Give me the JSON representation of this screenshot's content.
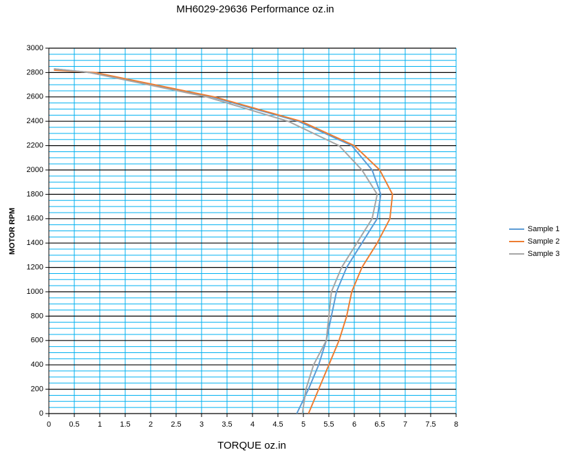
{
  "chart_data": {
    "type": "line",
    "title": "MH6029-29636  Performance oz.in",
    "x_label": "TORQUE  oz.in",
    "y_label": "MOTOR RPM",
    "xlim": [
      0,
      8
    ],
    "xticks": [
      0,
      0.5,
      1,
      1.5,
      2,
      2.5,
      3,
      3.5,
      4,
      4.5,
      5,
      5.5,
      6,
      6.5,
      7,
      7.5,
      8
    ],
    "ylim": [
      0,
      3000
    ],
    "yticks": [
      0,
      200,
      400,
      600,
      800,
      1000,
      1200,
      1400,
      1600,
      1800,
      2000,
      2200,
      2400,
      2600,
      2800,
      3000
    ],
    "yminorticks": [
      50,
      100,
      150,
      250,
      300,
      350,
      450,
      500,
      550,
      650,
      700,
      750,
      850,
      900,
      950,
      1050,
      1100,
      1150,
      1250,
      1300,
      1350,
      1450,
      1500,
      1550,
      1650,
      1700,
      1750,
      1850,
      1900,
      1950,
      2050,
      2100,
      2150,
      2250,
      2300,
      2350,
      2450,
      2500,
      2550,
      2650,
      2700,
      2750,
      2850,
      2900,
      2950
    ],
    "grid": true,
    "legend": "right",
    "series": [
      {
        "name": "Sample 1",
        "color": "#5b9bd5",
        "x": [
          4.87,
          5.1,
          5.3,
          5.45,
          5.55,
          5.65,
          5.85,
          6.15,
          6.45,
          6.52,
          6.35,
          5.95,
          4.9,
          3.2,
          0.8,
          0.1
        ],
        "values": [
          0,
          200,
          400,
          600,
          800,
          1000,
          1200,
          1400,
          1600,
          1800,
          2000,
          2200,
          2400,
          2600,
          2800,
          2830
        ]
      },
      {
        "name": "Sample 2",
        "color": "#ed7d31",
        "x": [
          5.1,
          5.3,
          5.5,
          5.7,
          5.85,
          5.95,
          6.15,
          6.45,
          6.7,
          6.75,
          6.5,
          6.0,
          4.95,
          3.25,
          0.9,
          0.1
        ],
        "values": [
          0,
          200,
          400,
          600,
          800,
          1000,
          1200,
          1400,
          1600,
          1800,
          2000,
          2200,
          2400,
          2600,
          2800,
          2820
        ]
      },
      {
        "name": "Sample 3",
        "color": "#a5a5a5",
        "x": [
          4.98,
          5.05,
          5.2,
          5.45,
          5.5,
          5.55,
          5.75,
          6.05,
          6.35,
          6.45,
          6.15,
          5.7,
          4.7,
          3.1,
          0.8,
          0.1
        ],
        "values": [
          0,
          200,
          400,
          600,
          800,
          1000,
          1200,
          1400,
          1600,
          1800,
          2000,
          2200,
          2400,
          2600,
          2800,
          2830
        ]
      }
    ]
  }
}
